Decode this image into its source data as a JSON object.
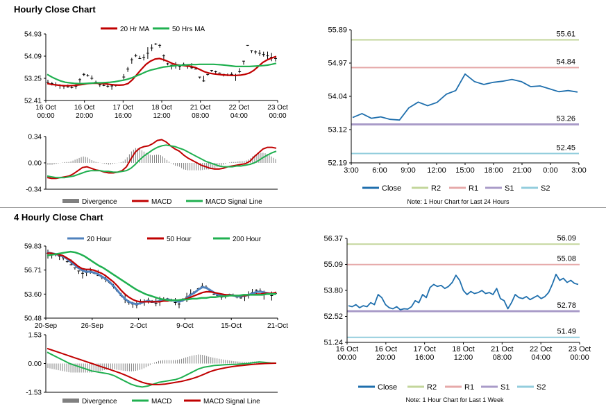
{
  "colors": {
    "ma20": "#c00000",
    "ma50": "#20b050",
    "ma20_4h": "#4f81bd",
    "ma200": "#20b050",
    "close": "#1f6fad",
    "r2": "#c3d69b",
    "r1": "#e6a9a9",
    "s1": "#a99bc8",
    "s2": "#93cddd",
    "divergence": "#808080",
    "macd": "#c00000",
    "signal": "#20b050",
    "grid": "#d9d9d9",
    "axis": "#000000",
    "separator": "#999999"
  },
  "sections": [
    {
      "title": "Hourly Close Chart"
    },
    {
      "title": "4 Hourly Close Chart"
    }
  ],
  "chart_data": [
    {
      "id": "hourly_price",
      "type": "line",
      "title": "",
      "legend": [
        "20 Hr MA",
        "50 Hrs MA"
      ],
      "legend_position": "top-center",
      "ylim": [
        52.41,
        54.93
      ],
      "yticks": [
        "54.93",
        "54.09",
        "53.25",
        "52.41"
      ],
      "xticks": [
        [
          "16 Oct",
          "00:00"
        ],
        [
          "16 Oct",
          "20:00"
        ],
        [
          "17 Oct",
          "16:00"
        ],
        [
          "18 Oct",
          "12:00"
        ],
        [
          "21 Oct",
          "08:00"
        ],
        [
          "22 Oct",
          "04:00"
        ],
        [
          "23 Oct",
          "00:00"
        ]
      ],
      "n": 70,
      "ohlc_close": [
        53.1,
        53.05,
        53.0,
        52.98,
        52.95,
        52.92,
        52.9,
        52.95,
        53.2,
        53.4,
        53.35,
        53.25,
        53.1,
        53.0,
        52.98,
        52.95,
        52.96,
        52.98,
        53.0,
        53.3,
        53.6,
        53.95,
        54.1,
        54.0,
        54.05,
        54.2,
        54.4,
        54.55,
        54.5,
        54.1,
        53.8,
        53.75,
        53.72,
        53.7,
        53.78,
        53.7,
        53.65,
        53.6,
        53.3,
        53.15,
        53.4,
        53.55,
        53.5,
        53.45,
        53.4,
        53.38,
        53.4,
        53.35,
        53.5,
        53.9,
        54.5,
        54.3,
        54.25,
        54.2,
        54.15,
        54.1,
        54.05,
        54.0
      ],
      "series": [
        {
          "name": "20 Hr MA",
          "values": [
            53.05,
            53.02,
            53.0,
            52.98,
            52.97,
            52.97,
            52.98,
            53.0,
            53.02,
            53.05,
            53.06,
            53.06,
            53.05,
            53.04,
            53.02,
            53.0,
            52.99,
            53.0,
            53.05,
            53.2,
            53.4,
            53.6,
            53.78,
            53.9,
            53.98,
            54.0,
            53.95,
            53.88,
            53.8,
            53.76,
            53.74,
            53.72,
            53.7,
            53.66,
            53.58,
            53.5,
            53.45,
            53.42,
            53.4,
            53.38,
            53.37,
            53.36,
            53.36,
            53.37,
            53.4,
            53.45,
            53.55,
            53.7,
            53.85,
            53.95,
            54.02,
            54.08
          ]
        },
        {
          "name": "50 Hrs MA",
          "values": [
            53.4,
            53.3,
            53.22,
            53.15,
            53.1,
            53.08,
            53.06,
            53.05,
            53.05,
            53.06,
            53.07,
            53.08,
            53.08,
            53.09,
            53.1,
            53.12,
            53.15,
            53.18,
            53.22,
            53.28,
            53.35,
            53.42,
            53.5,
            53.56,
            53.6,
            53.64,
            53.68,
            53.7,
            53.72,
            53.74,
            53.75,
            53.76,
            53.77,
            53.77,
            53.78,
            53.78,
            53.78,
            53.78,
            53.77,
            53.76,
            53.74,
            53.72,
            53.7,
            53.7,
            53.7,
            53.7,
            53.71,
            53.72,
            53.73,
            53.75,
            53.78,
            53.82
          ]
        }
      ]
    },
    {
      "id": "hourly_macd",
      "type": "line",
      "legend": [
        "Divergence",
        "MACD",
        "MACD Signal Line"
      ],
      "legend_position": "bottom-center",
      "ylim": [
        -0.34,
        0.34
      ],
      "yticks": [
        "0.34",
        "0.00",
        "-0.34"
      ],
      "series": [
        {
          "name": "MACD",
          "values": [
            -0.19,
            -0.2,
            -0.2,
            -0.19,
            -0.18,
            -0.17,
            -0.14,
            -0.1,
            -0.06,
            -0.05,
            -0.07,
            -0.09,
            -0.1,
            -0.12,
            -0.13,
            -0.13,
            -0.12,
            -0.1,
            -0.05,
            0.05,
            0.14,
            0.19,
            0.21,
            0.22,
            0.25,
            0.29,
            0.3,
            0.27,
            0.22,
            0.18,
            0.15,
            0.1,
            0.06,
            0.03,
            0.0,
            -0.03,
            -0.05,
            -0.07,
            -0.08,
            -0.08,
            -0.07,
            -0.05,
            -0.04,
            -0.03,
            -0.02,
            -0.01,
            0.02,
            0.08,
            0.13,
            0.18,
            0.2,
            0.2,
            0.19
          ]
        },
        {
          "name": "MACD Signal Line",
          "values": [
            -0.17,
            -0.18,
            -0.19,
            -0.19,
            -0.19,
            -0.18,
            -0.17,
            -0.15,
            -0.13,
            -0.11,
            -0.1,
            -0.1,
            -0.1,
            -0.11,
            -0.11,
            -0.12,
            -0.12,
            -0.11,
            -0.1,
            -0.07,
            -0.02,
            0.04,
            0.09,
            0.13,
            0.17,
            0.2,
            0.22,
            0.23,
            0.22,
            0.21,
            0.19,
            0.17,
            0.14,
            0.11,
            0.08,
            0.05,
            0.02,
            0.0,
            -0.02,
            -0.04,
            -0.05,
            -0.05,
            -0.05,
            -0.04,
            -0.04,
            -0.03,
            -0.02,
            0.0,
            0.03,
            0.07,
            0.1,
            0.13,
            0.15
          ]
        }
      ]
    },
    {
      "id": "hourly_levels",
      "type": "line",
      "legend": [
        "Close",
        "R2",
        "R1",
        "S1",
        "S2"
      ],
      "legend_position": "bottom-center",
      "note": "Note: 1 Hour Chart for Last 24 Hours",
      "ylim": [
        52.19,
        55.89
      ],
      "yticks": [
        "55.89",
        "54.97",
        "54.04",
        "53.12",
        "52.19"
      ],
      "xticks": [
        "3:00",
        "6:00",
        "9:00",
        "12:00",
        "15:00",
        "18:00",
        "21:00",
        "0:00",
        "3:00"
      ],
      "levels": [
        {
          "name": "R2",
          "value": 55.61,
          "label": "55.61"
        },
        {
          "name": "R1",
          "value": 54.84,
          "label": "54.84"
        },
        {
          "name": "S1",
          "value": 53.26,
          "label": "53.26"
        },
        {
          "name": "S2",
          "value": 52.45,
          "label": "52.45"
        }
      ],
      "series": [
        {
          "name": "Close",
          "values": [
            53.45,
            53.56,
            53.43,
            53.47,
            53.4,
            53.38,
            53.72,
            53.88,
            53.78,
            53.87,
            54.1,
            54.2,
            54.66,
            54.45,
            54.37,
            54.43,
            54.46,
            54.51,
            54.45,
            54.31,
            54.33,
            54.25,
            54.17,
            54.2,
            54.16
          ]
        }
      ]
    },
    {
      "id": "four_hourly_price",
      "type": "line",
      "legend": [
        "20 Hour",
        "50 Hour",
        "200 Hour"
      ],
      "legend_position": "top-center",
      "ylim": [
        50.48,
        59.83
      ],
      "yticks": [
        "59.83",
        "56.71",
        "53.60",
        "50.48"
      ],
      "xticks": [
        "20-Sep",
        "26-Sep",
        "2-Oct",
        "9-Oct",
        "15-Oct",
        "21-Oct"
      ],
      "n": 110,
      "ohlc_close": [
        58.9,
        58.8,
        58.7,
        58.5,
        58.3,
        57.8,
        57.4,
        57.0,
        56.6,
        56.3,
        56.4,
        56.6,
        56.3,
        56.0,
        55.8,
        55.5,
        55.1,
        54.6,
        54.0,
        53.4,
        52.9,
        52.5,
        52.3,
        52.2,
        52.4,
        52.6,
        52.8,
        52.5,
        52.4,
        52.6,
        52.8,
        53.0,
        52.7,
        52.5,
        52.3,
        52.8,
        53.2,
        53.6,
        53.9,
        54.3,
        54.6,
        54.5,
        54.0,
        53.6,
        53.4,
        53.2,
        53.3,
        53.5,
        53.4,
        53.2,
        53.1,
        53.3,
        53.5,
        53.8,
        54.1,
        54.0,
        53.7,
        53.6,
        53.4,
        53.7
      ],
      "series": [
        {
          "name": "20 Hour",
          "values": [
            59.0,
            58.9,
            58.8,
            58.7,
            58.5,
            58.2,
            57.8,
            57.4,
            57.0,
            56.7,
            56.5,
            56.5,
            56.4,
            56.2,
            55.9,
            55.6,
            55.2,
            54.7,
            54.1,
            53.5,
            53.0,
            52.6,
            52.4,
            52.3,
            52.4,
            52.6,
            52.7,
            52.6,
            52.6,
            52.7,
            52.8,
            52.9,
            52.8,
            52.7,
            52.6,
            52.8,
            53.1,
            53.5,
            53.8,
            54.2,
            54.5,
            54.4,
            54.1,
            53.8,
            53.5,
            53.4,
            53.4,
            53.5,
            53.4,
            53.3,
            53.3,
            53.4,
            53.5,
            53.7,
            53.9,
            53.9,
            53.8,
            53.7,
            53.6,
            53.7
          ]
        },
        {
          "name": "50 Hour",
          "values": [
            58.9,
            58.9,
            58.8,
            58.7,
            58.6,
            58.3,
            58.0,
            57.6,
            57.2,
            56.9,
            56.8,
            56.8,
            56.7,
            56.5,
            56.3,
            56.0,
            55.6,
            55.2,
            54.7,
            54.1,
            53.6,
            53.2,
            52.9,
            52.7,
            52.6,
            52.6,
            52.6,
            52.6,
            52.6,
            52.6,
            52.7,
            52.7,
            52.8,
            52.8,
            52.8,
            52.9,
            53.0,
            53.2,
            53.4,
            53.6,
            53.8,
            53.9,
            53.9,
            53.8,
            53.7,
            53.6,
            53.5,
            53.5,
            53.4,
            53.4,
            53.4,
            53.4,
            53.5,
            53.5,
            53.6,
            53.6,
            53.7,
            53.7,
            53.7,
            53.8
          ]
        },
        {
          "name": "200 Hour",
          "values": [
            58.6,
            58.7,
            58.8,
            58.9,
            59.0,
            59.1,
            59.0,
            58.8,
            58.5,
            58.1,
            57.7,
            57.3,
            57.0,
            56.6,
            56.2,
            55.8,
            55.4,
            55.0,
            54.6,
            54.2,
            53.9,
            53.6,
            53.4,
            53.2,
            53.0,
            52.9,
            52.8,
            52.8,
            52.8,
            52.9,
            52.9,
            53.0,
            53.0,
            53.1,
            53.1,
            53.2,
            53.2,
            53.3,
            53.3,
            53.4,
            53.4,
            53.4,
            53.5,
            53.5,
            53.5,
            53.5,
            53.5,
            53.6,
            53.6,
            53.6
          ]
        }
      ]
    },
    {
      "id": "four_hourly_macd",
      "type": "line",
      "legend": [
        "Divergence",
        "MACD",
        "MACD Signal Line"
      ],
      "legend_position": "bottom-center",
      "ylim": [
        -1.53,
        1.53
      ],
      "yticks": [
        "1.53",
        "0.00",
        "-1.53"
      ],
      "series": [
        {
          "name": "MACD",
          "values": [
            0.6,
            0.45,
            0.3,
            0.15,
            0.0,
            -0.1,
            -0.2,
            -0.3,
            -0.4,
            -0.45,
            -0.5,
            -0.55,
            -0.65,
            -0.8,
            -0.95,
            -1.1,
            -1.2,
            -1.25,
            -1.2,
            -1.1,
            -1.0,
            -0.95,
            -0.9,
            -0.85,
            -0.75,
            -0.6,
            -0.45,
            -0.3,
            -0.2,
            -0.15,
            -0.1,
            -0.08,
            -0.06,
            -0.05,
            -0.04,
            -0.02,
            0.0,
            0.05,
            0.08,
            0.06,
            0.03,
            0.02
          ]
        },
        {
          "name": "MACD Signal Line",
          "values": [
            0.8,
            0.7,
            0.6,
            0.5,
            0.4,
            0.3,
            0.2,
            0.1,
            0.0,
            -0.1,
            -0.2,
            -0.3,
            -0.4,
            -0.5,
            -0.62,
            -0.75,
            -0.88,
            -1.0,
            -1.08,
            -1.12,
            -1.12,
            -1.1,
            -1.05,
            -1.0,
            -0.95,
            -0.88,
            -0.8,
            -0.7,
            -0.58,
            -0.45,
            -0.35,
            -0.28,
            -0.22,
            -0.17,
            -0.13,
            -0.1,
            -0.07,
            -0.04,
            -0.02,
            0.0,
            0.01,
            0.02
          ]
        }
      ]
    },
    {
      "id": "four_hourly_levels",
      "type": "line",
      "legend": [
        "Close",
        "R2",
        "R1",
        "S1",
        "S2"
      ],
      "legend_position": "bottom-center",
      "note": "Note: 1 Hour Chart for Last 1 Week",
      "ylim": [
        51.24,
        56.37
      ],
      "yticks": [
        "56.37",
        "55.09",
        "53.80",
        "52.52",
        "51.24"
      ],
      "xticks": [
        [
          "16 Oct",
          "00:00"
        ],
        [
          "16 Oct",
          "20:00"
        ],
        [
          "17 Oct",
          "16:00"
        ],
        [
          "18 Oct",
          "12:00"
        ],
        [
          "21 Oct",
          "08:00"
        ],
        [
          "22 Oct",
          "04:00"
        ],
        [
          "23 Oct",
          "00:00"
        ]
      ],
      "levels": [
        {
          "name": "R2",
          "value": 56.09,
          "label": "56.09"
        },
        {
          "name": "R1",
          "value": 55.08,
          "label": "55.08"
        },
        {
          "name": "S1",
          "value": 52.78,
          "label": "52.78"
        },
        {
          "name": "S2",
          "value": 51.49,
          "label": "51.49"
        }
      ],
      "series": [
        {
          "name": "Close",
          "values": [
            53.05,
            53.0,
            53.1,
            52.95,
            53.05,
            53.0,
            53.2,
            53.1,
            53.6,
            53.45,
            53.1,
            52.95,
            52.9,
            53.0,
            52.85,
            52.9,
            52.88,
            53.0,
            53.3,
            53.2,
            53.6,
            53.45,
            53.95,
            54.1,
            54.0,
            54.05,
            53.9,
            54.0,
            54.2,
            54.55,
            54.3,
            53.8,
            53.6,
            53.75,
            53.65,
            53.7,
            53.8,
            53.65,
            53.7,
            53.6,
            53.9,
            53.4,
            53.3,
            52.9,
            53.2,
            53.6,
            53.45,
            53.4,
            53.5,
            53.35,
            53.45,
            53.55,
            53.4,
            53.5,
            53.7,
            54.1,
            54.6,
            54.3,
            54.4,
            54.2,
            54.3,
            54.15,
            54.1
          ]
        }
      ]
    }
  ]
}
